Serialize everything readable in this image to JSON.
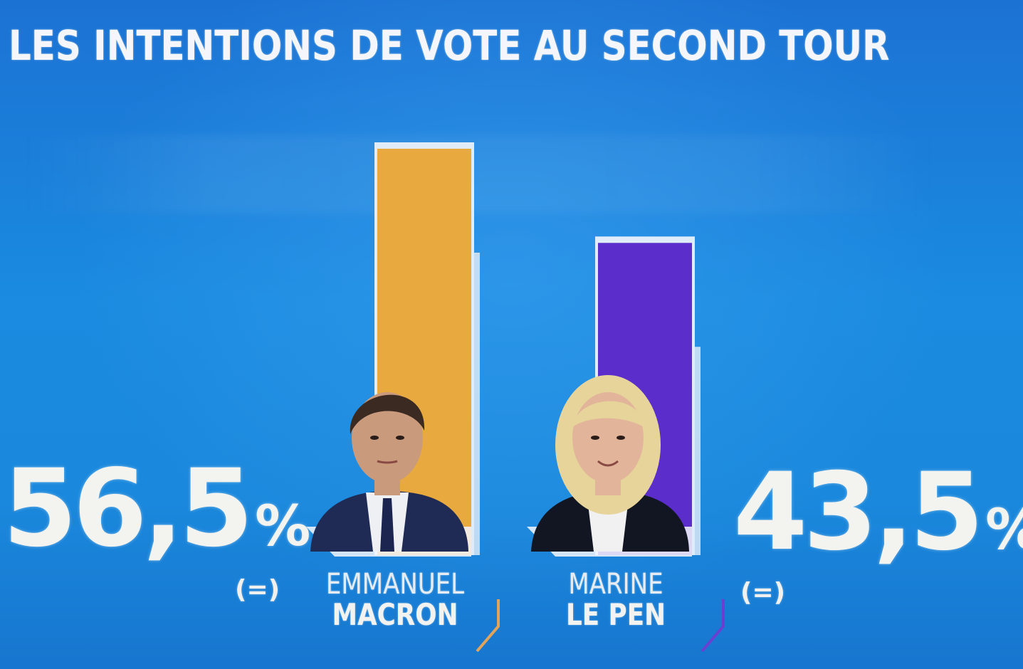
{
  "title": "LES INTENTIONS DE VOTE AU SECOND TOUR",
  "colors": {
    "background": "#1a84dc",
    "macron_bar": "#e8a93f",
    "le_pen_bar": "#5b2ecb",
    "frame": "#f4f6fb"
  },
  "candidates": [
    {
      "first_name": "EMMANUEL",
      "last_name": "MACRON",
      "percent_label": "56,5",
      "percent_sign": "%",
      "change": "(=)",
      "icon": "person-portrait-icon"
    },
    {
      "first_name": "MARINE",
      "last_name": "LE PEN",
      "percent_label": "43,5",
      "percent_sign": "%",
      "change": "(=)",
      "icon": "person-portrait-icon"
    }
  ],
  "chart_data": {
    "type": "bar",
    "title": "LES INTENTIONS DE VOTE AU SECOND TOUR",
    "categories": [
      "EMMANUEL MACRON",
      "MARINE LE PEN"
    ],
    "values": [
      56.5,
      43.5
    ],
    "unit": "%",
    "xlabel": "",
    "ylabel": "",
    "ylim": [
      0,
      60
    ],
    "grid": false,
    "legend": "none"
  }
}
